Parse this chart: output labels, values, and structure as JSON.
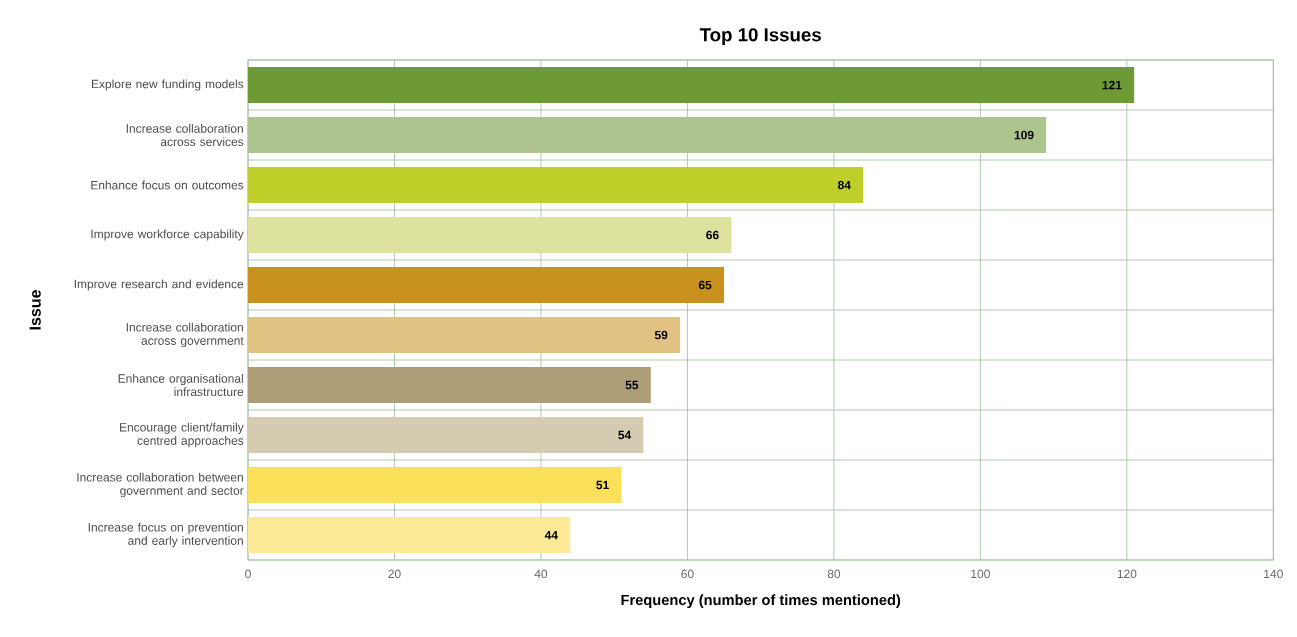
{
  "chart_data": {
    "type": "bar",
    "orientation": "horizontal",
    "title": "Top 10 Issues",
    "xlabel": "Frequency (number of times mentioned)",
    "ylabel": "Issue",
    "categories": [
      "Explore new funding models",
      "Increase collaboration across services",
      "Enhance focus on outcomes",
      "Improve workforce capability",
      "Improve research and evidence",
      "Increase collaboration across government",
      "Enhance organisational infrastructure",
      "Encourage client/family centred approaches",
      "Increase collaboration between government and sector",
      "Increase focus on prevention and early intervention"
    ],
    "values": [
      121,
      109,
      84,
      66,
      65,
      59,
      55,
      54,
      51,
      44
    ],
    "colors": [
      "#6e9a35",
      "#aec48e",
      "#bfcf2a",
      "#dde39e",
      "#c8921c",
      "#e2c283",
      "#ae9e78",
      "#d4cbb0",
      "#fbe05a",
      "#fce998"
    ],
    "xlim": [
      0,
      140
    ],
    "xticks": [
      0,
      20,
      40,
      60,
      80,
      100,
      120,
      140
    ],
    "grid": true,
    "data_labels": true
  }
}
